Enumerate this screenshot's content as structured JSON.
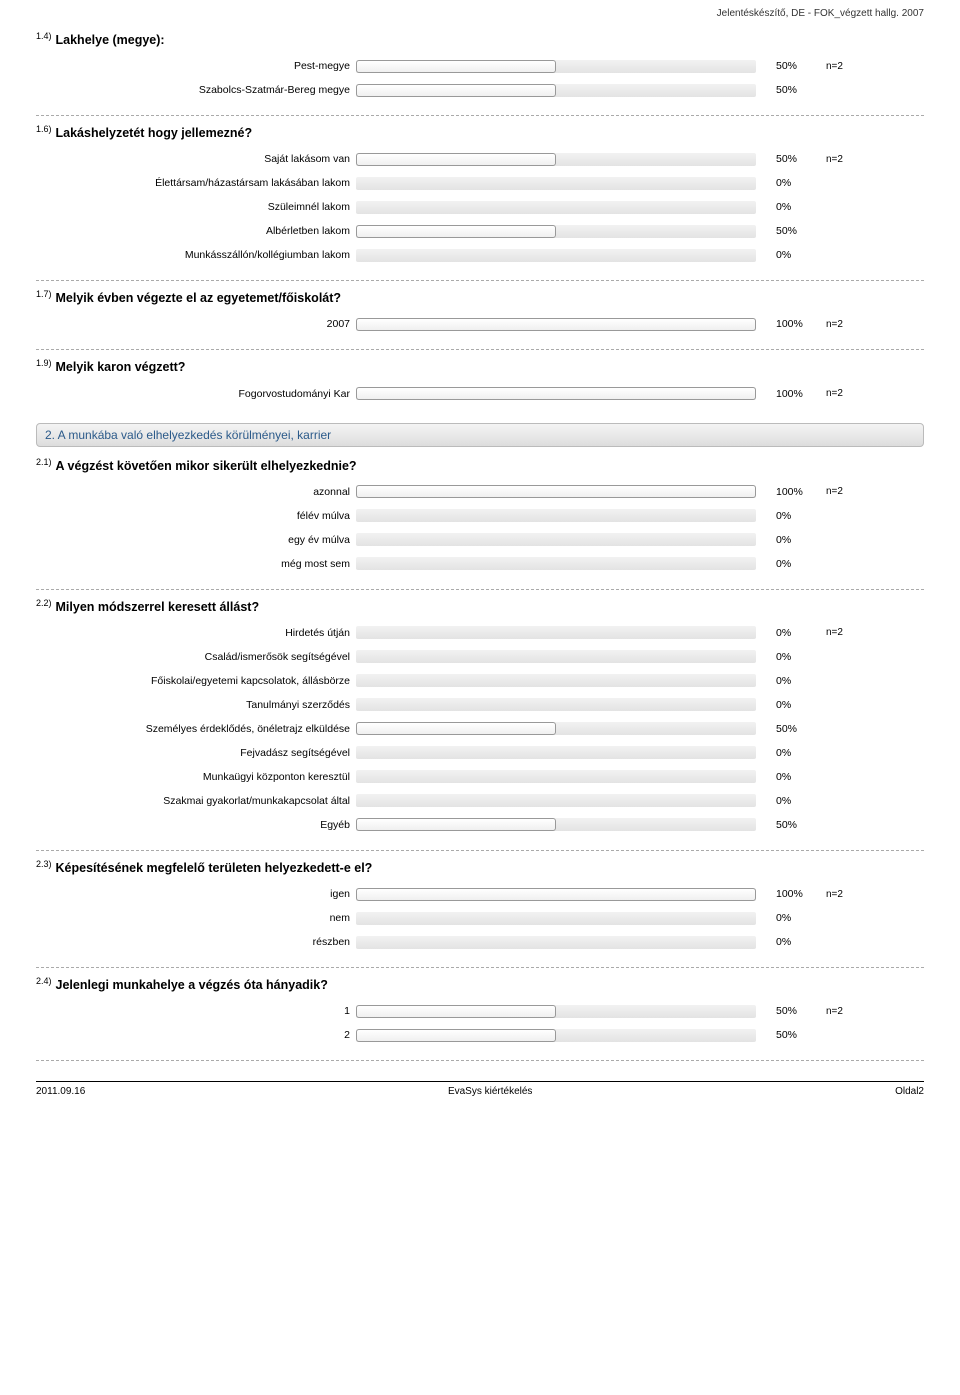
{
  "header": "Jelentéskészítő, DE - FOK_végzett hallg. 2007",
  "footer": {
    "left": "2011.09.16",
    "center": "EvaSys kiértékelés",
    "right": "Oldal2"
  },
  "section2_title": "2. A munkába való elhelyezkedés körülményei, karrier",
  "note_label": "n=2",
  "questions": [
    {
      "num": "1.4)",
      "title": "Lakhelye (megye):",
      "note_on_first": true,
      "rows": [
        {
          "label": "Pest-megye",
          "pct": 50
        },
        {
          "label": "Szabolcs-Szatmár-Bereg megye",
          "pct": 50
        }
      ]
    },
    {
      "num": "1.6)",
      "title": "Lakáshelyzetét hogy jellemezné?",
      "note_on_first": true,
      "rows": [
        {
          "label": "Saját lakásom van",
          "pct": 50
        },
        {
          "label": "Élettársam/házastársam lakásában lakom",
          "pct": 0
        },
        {
          "label": "Szüleimnél lakom",
          "pct": 0
        },
        {
          "label": "Albérletben lakom",
          "pct": 50
        },
        {
          "label": "Munkásszállón/kollégiumban lakom",
          "pct": 0
        }
      ]
    },
    {
      "num": "1.7)",
      "title": "Melyik évben végezte el az egyetemet/főiskolát?",
      "note_on_first": true,
      "rows": [
        {
          "label": "2007",
          "pct": 100
        }
      ]
    },
    {
      "num": "1.9)",
      "title": "Melyik karon végzett?",
      "note_on_first": true,
      "rows": [
        {
          "label": "Fogorvostudományi Kar",
          "pct": 100
        }
      ]
    },
    {
      "section_before": true,
      "num": "2.1)",
      "title": "A végzést követően mikor sikerült elhelyezkednie?",
      "note_on_first": true,
      "rows": [
        {
          "label": "azonnal",
          "pct": 100
        },
        {
          "label": "félév múlva",
          "pct": 0
        },
        {
          "label": "egy év múlva",
          "pct": 0
        },
        {
          "label": "még most sem",
          "pct": 0
        }
      ]
    },
    {
      "num": "2.2)",
      "title": "Milyen módszerrel keresett állást?",
      "note_on_first": true,
      "rows": [
        {
          "label": "Hirdetés útján",
          "pct": 0
        },
        {
          "label": "Család/ismerősök segítségével",
          "pct": 0
        },
        {
          "label": "Főiskolai/egyetemi kapcsolatok, állásbörze",
          "pct": 0
        },
        {
          "label": "Tanulmányi szerződés",
          "pct": 0
        },
        {
          "label": "Személyes érdeklődés, önéletrajz elküldése",
          "pct": 50
        },
        {
          "label": "Fejvadász segítségével",
          "pct": 0
        },
        {
          "label": "Munkaügyi központon keresztül",
          "pct": 0
        },
        {
          "label": "Szakmai gyakorlat/munkakapcsolat által",
          "pct": 0
        },
        {
          "label": "Egyéb",
          "pct": 50
        }
      ]
    },
    {
      "num": "2.3)",
      "title": "Képesítésének megfelelő területen helyezkedett-e el?",
      "note_on_first": true,
      "rows": [
        {
          "label": "igen",
          "pct": 100
        },
        {
          "label": "nem",
          "pct": 0
        },
        {
          "label": "részben",
          "pct": 0
        }
      ]
    },
    {
      "num": "2.4)",
      "title": "Jelenlegi munkahelye a végzés óta hányadik?",
      "note_on_first": true,
      "rows": [
        {
          "label": "1",
          "pct": 50
        },
        {
          "label": "2",
          "pct": 50
        }
      ]
    }
  ]
}
